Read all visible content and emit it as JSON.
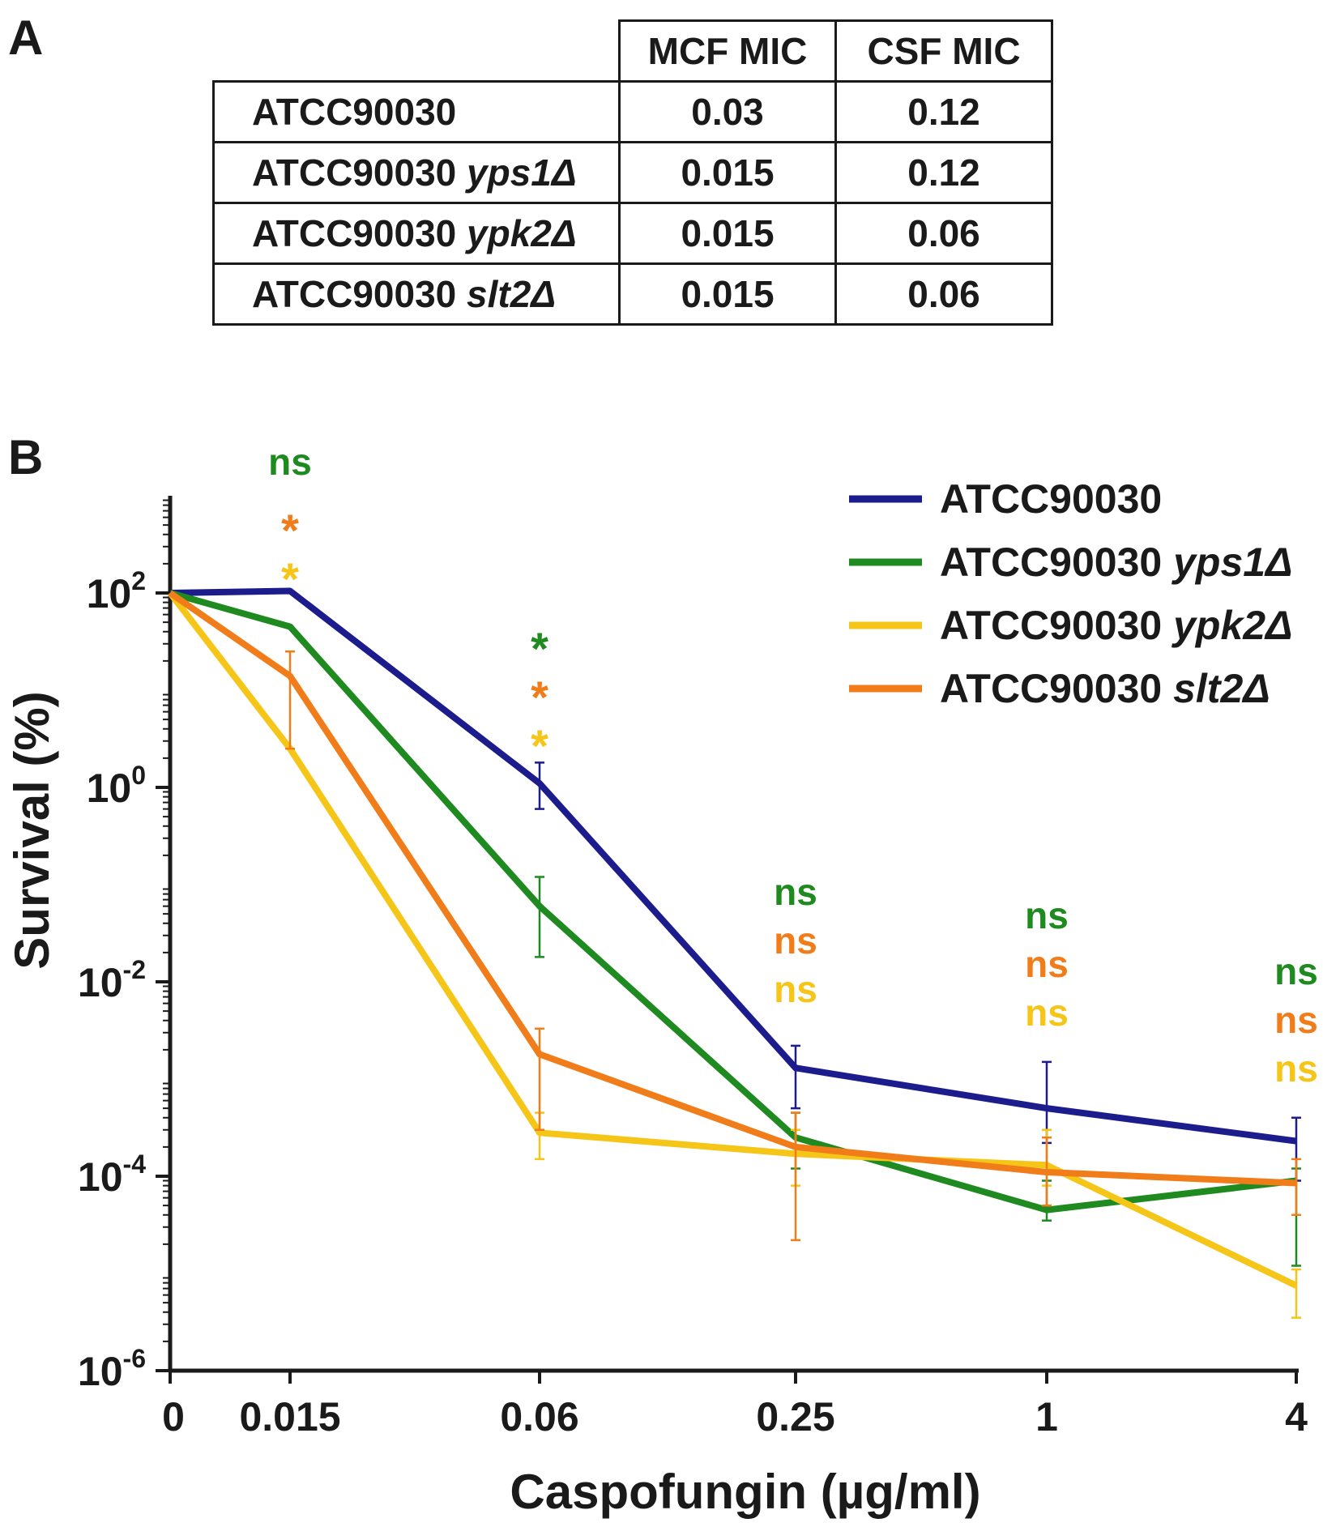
{
  "panel_a": {
    "letter": "A",
    "headers": [
      "MCF MIC",
      "CSF MIC"
    ],
    "rows": [
      {
        "strain": "ATCC90030",
        "mutation": "",
        "mcf": "0.03",
        "csf": "0.12"
      },
      {
        "strain": "ATCC90030",
        "mutation": "yps1Δ",
        "mcf": "0.015",
        "csf": "0.12"
      },
      {
        "strain": "ATCC90030",
        "mutation": "ypk2Δ",
        "mcf": "0.015",
        "csf": "0.06"
      },
      {
        "strain": "ATCC90030",
        "mutation": "slt2Δ",
        "mcf": "0.015",
        "csf": "0.06"
      }
    ]
  },
  "panel_b": {
    "letter": "B"
  },
  "chart_data": {
    "type": "line",
    "title": "",
    "xlabel": "Caspofungin (µg/ml)",
    "ylabel": "Survival (%)",
    "x_scale": "categorical",
    "categories": [
      "0",
      "0.015",
      "0.06",
      "0.25",
      "1",
      "4"
    ],
    "y_scale": "log10",
    "ylim": [
      1e-06,
      1000
    ],
    "y_ticks": [
      {
        "value": 100,
        "base": "10",
        "exp": "2"
      },
      {
        "value": 1,
        "base": "10",
        "exp": "0"
      },
      {
        "value": 0.01,
        "base": "10",
        "exp": "-2"
      },
      {
        "value": 0.0001,
        "base": "10",
        "exp": "-4"
      },
      {
        "value": 1e-06,
        "base": "10",
        "exp": "-6"
      }
    ],
    "legend_position": "top-right",
    "series": [
      {
        "name": "ATCC90030",
        "mutation": "",
        "color": "#1c1c8c",
        "values": [
          100,
          105,
          1.1,
          0.0013,
          0.0005,
          0.00023
        ],
        "err_low": [
          null,
          null,
          0.6,
          0.0005,
          0.00022,
          9e-05
        ],
        "err_high": [
          null,
          null,
          1.8,
          0.0022,
          0.0015,
          0.0004
        ]
      },
      {
        "name": "ATCC90030",
        "mutation": "yps1Δ",
        "color": "#1f8a1f",
        "values": [
          100,
          45,
          0.06,
          0.00025,
          4.5e-05,
          9e-05
        ],
        "err_low": [
          null,
          null,
          0.018,
          0.00012,
          3.5e-05,
          1.2e-05
        ],
        "err_high": [
          null,
          null,
          0.12,
          0.00045,
          9e-05,
          0.00012
        ]
      },
      {
        "name": "ATCC90030",
        "mutation": "ypk2Δ",
        "color": "#f5c518",
        "values": [
          100,
          2.5,
          0.00028,
          0.00017,
          0.00013,
          7.5e-06
        ],
        "err_low": [
          null,
          null,
          0.00015,
          8e-05,
          8e-05,
          3.5e-06
        ],
        "err_high": [
          null,
          null,
          0.00045,
          0.0003,
          0.0003,
          1.1e-05
        ]
      },
      {
        "name": "ATCC90030",
        "mutation": "slt2Δ",
        "color": "#f07d1a",
        "values": [
          100,
          14,
          0.0018,
          0.0002,
          0.00011,
          8.5e-05
        ],
        "err_low": [
          null,
          2.5,
          0.0003,
          2.2e-05,
          5e-05,
          4e-05
        ],
        "err_high": [
          null,
          25,
          0.0033,
          0.00045,
          0.00025,
          0.00015
        ]
      }
    ],
    "annotations": [
      {
        "category": "0.015",
        "labels": [
          {
            "text": "ns",
            "color": "#1f8a1f"
          },
          {
            "text": "*",
            "color": "#f07d1a"
          },
          {
            "text": "*",
            "color": "#f5c518"
          }
        ]
      },
      {
        "category": "0.06",
        "labels": [
          {
            "text": "*",
            "color": "#1f8a1f"
          },
          {
            "text": "*",
            "color": "#f07d1a"
          },
          {
            "text": "*",
            "color": "#f5c518"
          }
        ]
      },
      {
        "category": "0.25",
        "labels": [
          {
            "text": "ns",
            "color": "#1f8a1f"
          },
          {
            "text": "ns",
            "color": "#f07d1a"
          },
          {
            "text": "ns",
            "color": "#f5c518"
          }
        ]
      },
      {
        "category": "1",
        "labels": [
          {
            "text": "ns",
            "color": "#1f8a1f"
          },
          {
            "text": "ns",
            "color": "#f07d1a"
          },
          {
            "text": "ns",
            "color": "#f5c518"
          }
        ]
      },
      {
        "category": "4",
        "labels": [
          {
            "text": "ns",
            "color": "#1f8a1f"
          },
          {
            "text": "ns",
            "color": "#f07d1a"
          },
          {
            "text": "ns",
            "color": "#f5c518"
          }
        ]
      }
    ]
  }
}
